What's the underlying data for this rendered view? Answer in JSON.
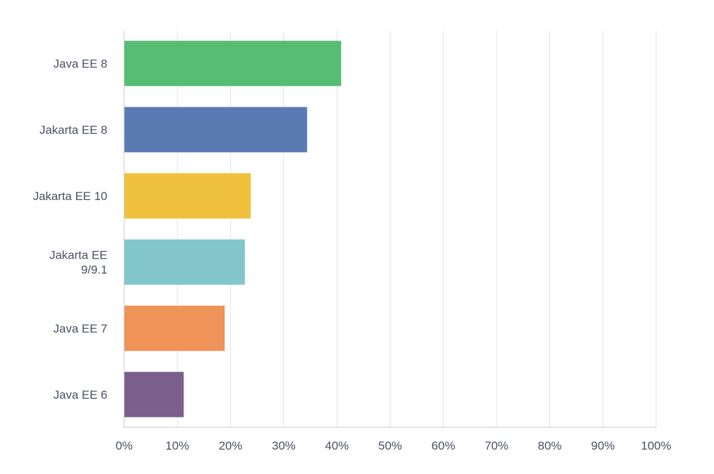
{
  "chart_data": {
    "type": "bar",
    "orientation": "horizontal",
    "categories": [
      "Java EE 8",
      "Jakarta EE 8",
      "Jakarta EE 10",
      "Jakarta EE 9/9.1",
      "Java EE 7",
      "Java EE 6"
    ],
    "category_label_lines": [
      [
        "Java EE 8"
      ],
      [
        "Jakarta EE 8"
      ],
      [
        "Jakarta EE 10"
      ],
      [
        "Jakarta EE",
        "9/9.1"
      ],
      [
        "Java EE 7"
      ],
      [
        "Java EE 6"
      ]
    ],
    "values": [
      40.8,
      34.4,
      23.8,
      22.7,
      18.9,
      11.2
    ],
    "colors": [
      "#57bd74",
      "#5a7ab3",
      "#f0c13d",
      "#82c5ca",
      "#ef9359",
      "#7a5e8c"
    ],
    "xlim": [
      0,
      100
    ],
    "x_ticks": [
      "0%",
      "10%",
      "20%",
      "30%",
      "40%",
      "50%",
      "60%",
      "70%",
      "80%",
      "90%",
      "100%"
    ],
    "title": "",
    "xlabel": "",
    "ylabel": "",
    "grid": "vertical",
    "legend": "none"
  }
}
